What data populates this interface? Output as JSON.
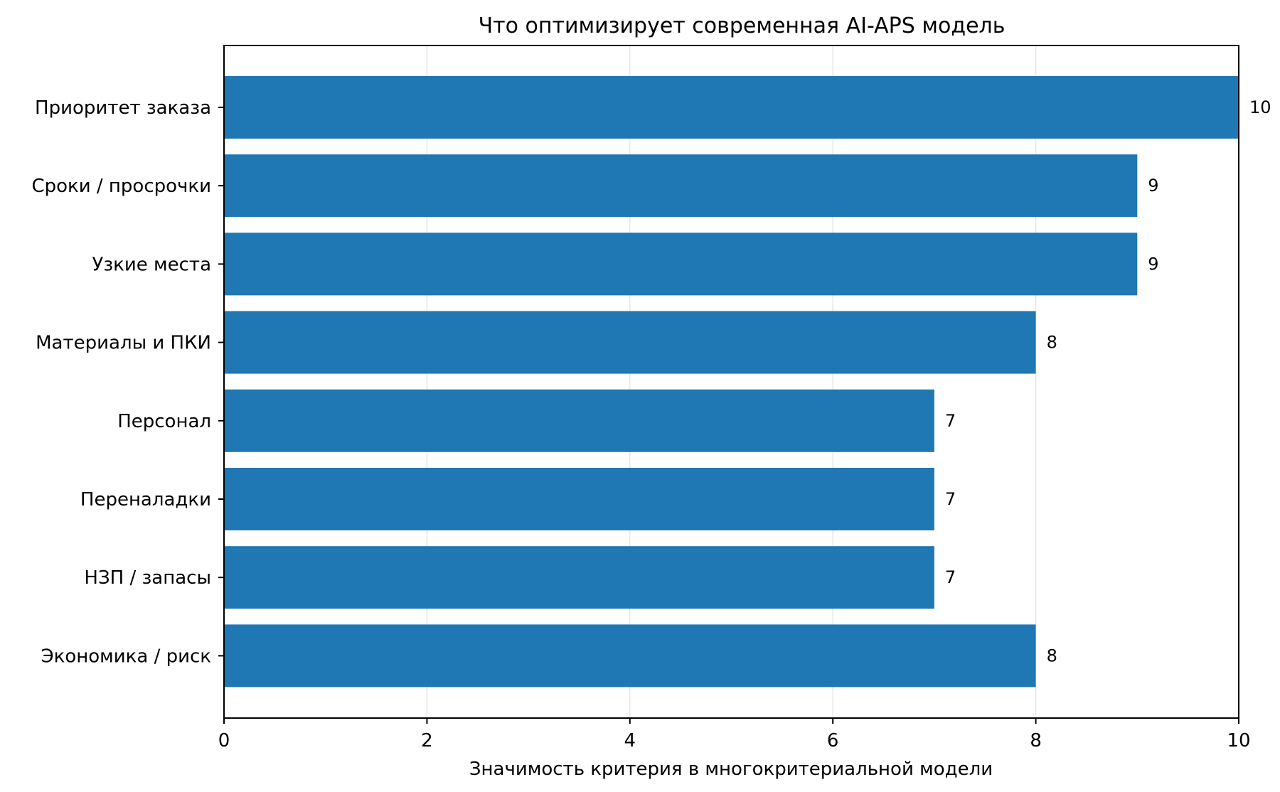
{
  "chart_data": {
    "type": "bar",
    "orientation": "horizontal",
    "title": "Что оптимизирует современная AI-APS модель",
    "xlabel": "Значимость критерия в многокритериальной модели",
    "ylabel": "",
    "categories": [
      "Приоритет заказа",
      "Сроки / просрочки",
      "Узкие места",
      "Материалы и ПКИ",
      "Персонал",
      "Переналадки",
      "НЗП / запасы",
      "Экономика / риск"
    ],
    "values": [
      10,
      9,
      9,
      8,
      7,
      7,
      7,
      8
    ],
    "xlim": [
      0,
      10
    ],
    "xticks": [
      0,
      2,
      4,
      6,
      8,
      10
    ],
    "grid": "vertical",
    "legend": "none",
    "bar_color": "#1f77b4",
    "grid_color": "#e6e6e6",
    "data_labels": true
  }
}
